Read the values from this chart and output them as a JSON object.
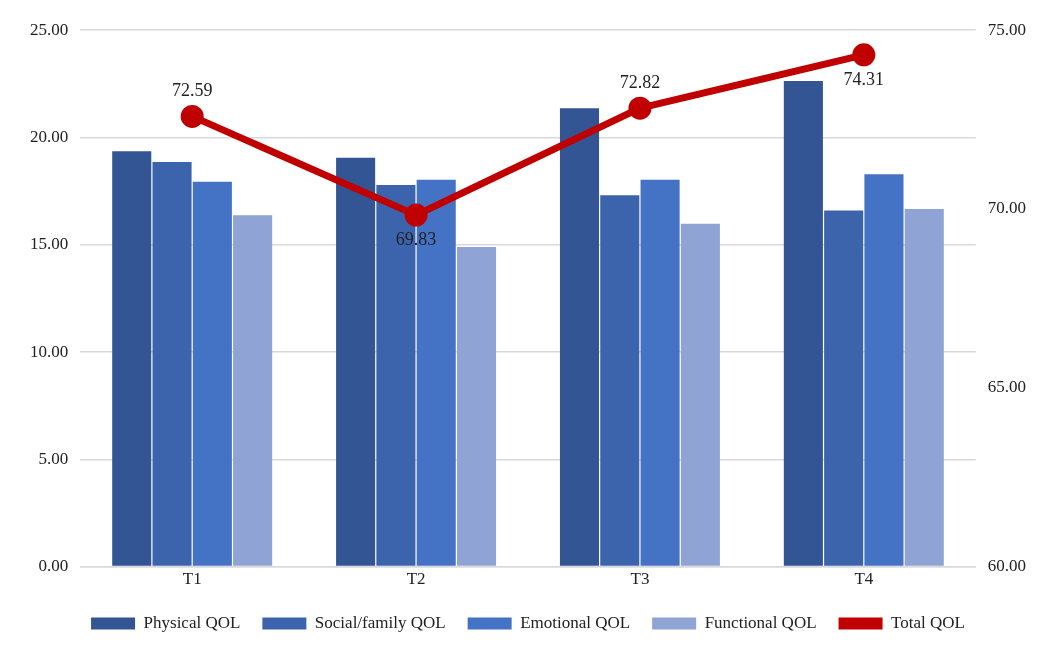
{
  "chart_data": {
    "type": "bar",
    "categories": [
      "T1",
      "T2",
      "T3",
      "T4"
    ],
    "series": [
      {
        "name": "Physical QOL",
        "color": "#335593",
        "values": [
          19.36,
          19.06,
          21.36,
          22.63
        ]
      },
      {
        "name": "Social/family QOL",
        "color": "#3c64ad",
        "values": [
          18.86,
          17.78,
          17.31,
          16.6
        ]
      },
      {
        "name": "Emotional QOL",
        "color": "#4472c4",
        "values": [
          17.94,
          18.03,
          18.03,
          18.29
        ]
      },
      {
        "name": "Functional QOL",
        "color": "#8fa3d4",
        "values": [
          16.37,
          14.89,
          15.98,
          16.67
        ]
      },
      {
        "name": "Total QOL",
        "type": "line",
        "axis": "y2",
        "color": "#c00000",
        "marker": "circle",
        "values": [
          72.59,
          69.83,
          72.82,
          74.31
        ],
        "value_labels": [
          "72.59",
          "69.83",
          "72.82",
          "74.31"
        ]
      }
    ],
    "ylim": [
      0,
      25
    ],
    "yticks": [
      {
        "value": 0,
        "label": "0.00"
      },
      {
        "value": 5,
        "label": "5.00"
      },
      {
        "value": 10,
        "label": "10.00"
      },
      {
        "value": 15,
        "label": "15.00"
      },
      {
        "value": 20,
        "label": "20.00"
      },
      {
        "value": 25,
        "label": "25.00"
      }
    ],
    "y2lim": [
      60,
      75
    ],
    "y2ticks": [
      {
        "value": 60,
        "label": "60.00"
      },
      {
        "value": 65,
        "label": "65.00"
      },
      {
        "value": 70,
        "label": "70.00"
      },
      {
        "value": 75,
        "label": "75.00"
      }
    ],
    "grid": "y",
    "legend": "bottom"
  }
}
